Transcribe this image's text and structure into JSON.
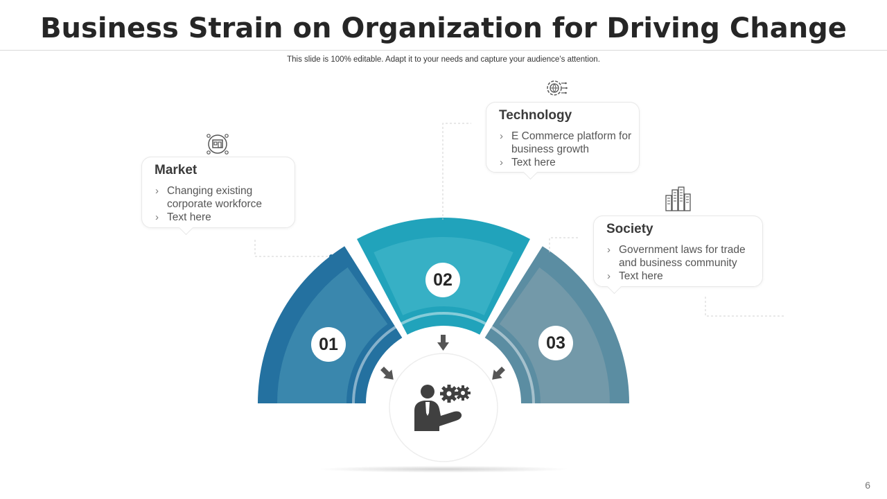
{
  "slide": {
    "title": "Business Strain on Organization for Driving Change",
    "subtitle": "This slide is 100% editable. Adapt it to your needs and capture your audience’s attention.",
    "page_number": "6"
  },
  "segments": [
    {
      "number": "01",
      "color": "#2471a0",
      "inner_color": "#3a87ad"
    },
    {
      "number": "02",
      "color": "#21a3bb",
      "inner_color": "#37b0c5"
    },
    {
      "number": "03",
      "color": "#5b8da2",
      "inner_color": "#7399a9"
    }
  ],
  "center": {
    "icon": "businessman-gears-icon"
  },
  "callouts": {
    "market": {
      "icon": "market-store-icon",
      "heading": "Market",
      "bullets": [
        "Changing existing corporate workforce",
        "Text here"
      ]
    },
    "technology": {
      "icon": "gear-globe-icon",
      "heading": "Technology",
      "bullets": [
        "E Commerce platform for business growth",
        "Text here"
      ]
    },
    "society": {
      "icon": "city-buildings-icon",
      "heading": "Society",
      "bullets": [
        "Government laws for trade and business community",
        "Text here"
      ]
    }
  }
}
